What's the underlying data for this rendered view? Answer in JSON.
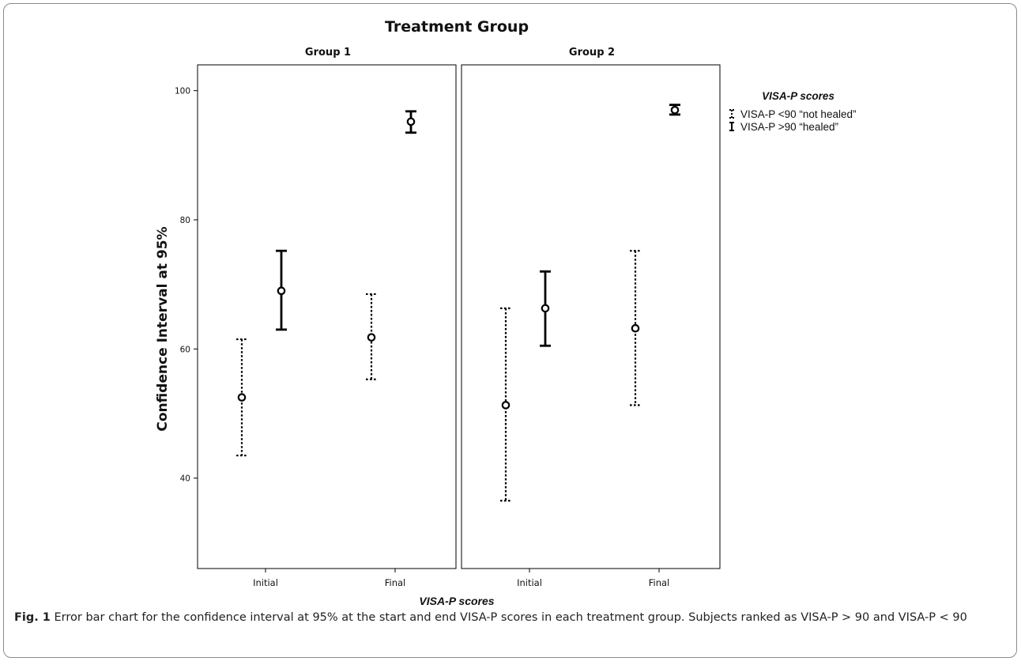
{
  "figure": {
    "caption_label": "Fig. 1",
    "caption_text": "Error bar chart for the confidence interval at 95% at the start and end VISA-P scores in each treatment group. Subjects ranked as VISA-P > 90 and VISA-P < 90"
  },
  "chart_data": {
    "type": "errorbar",
    "title": "Treatment Group",
    "xlabel": "VISA-P scores",
    "ylabel": "Confidence Interval at 95%",
    "ylim": [
      26,
      104
    ],
    "yticks": [
      40,
      60,
      80,
      100
    ],
    "categories": [
      "Initial",
      "Final"
    ],
    "panels": [
      "Group 1",
      "Group 2"
    ],
    "legend": {
      "title": "VISA-P scores",
      "placement": "right"
    },
    "series": [
      {
        "name": "VISA-P <90 “not healed”",
        "style": "dotted",
        "points": [
          {
            "panel": "Group 1",
            "category": "Initial",
            "mean": 52.5,
            "lower": 43.5,
            "upper": 61.5
          },
          {
            "panel": "Group 1",
            "category": "Final",
            "mean": 61.8,
            "lower": 55.3,
            "upper": 68.5
          },
          {
            "panel": "Group 2",
            "category": "Initial",
            "mean": 51.3,
            "lower": 36.5,
            "upper": 66.3
          },
          {
            "panel": "Group 2",
            "category": "Final",
            "mean": 63.2,
            "lower": 51.3,
            "upper": 75.2
          }
        ]
      },
      {
        "name": "VISA-P >90 “healed”",
        "style": "solid",
        "points": [
          {
            "panel": "Group 1",
            "category": "Initial",
            "mean": 69.0,
            "lower": 63.0,
            "upper": 75.2
          },
          {
            "panel": "Group 1",
            "category": "Final",
            "mean": 95.2,
            "lower": 93.5,
            "upper": 96.8
          },
          {
            "panel": "Group 2",
            "category": "Initial",
            "mean": 66.3,
            "lower": 60.5,
            "upper": 72.0
          },
          {
            "panel": "Group 2",
            "category": "Final",
            "mean": 97.0,
            "lower": 96.3,
            "upper": 97.8
          }
        ]
      }
    ]
  }
}
